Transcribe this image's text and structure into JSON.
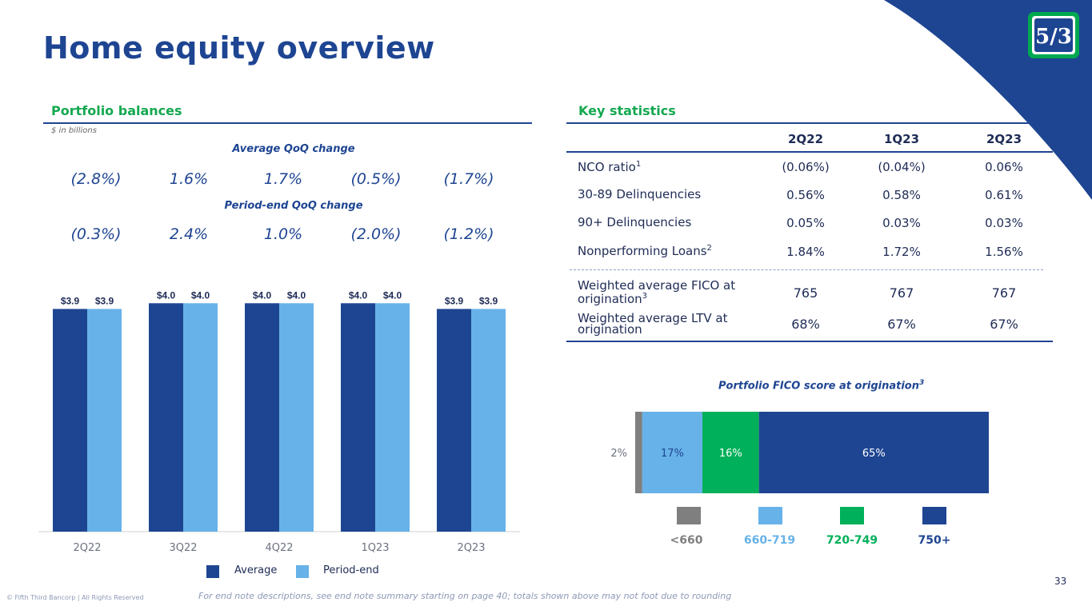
{
  "title": "Home equity overview",
  "colors": {
    "navy": "#1e4592",
    "light_blue": "#67b2e8",
    "green": "#00b05a",
    "gray": "#7f7f7f",
    "section_green": "#14a850"
  },
  "portfolio": {
    "heading": "Portfolio balances",
    "units": "$ in billions",
    "avg_qoq_title": "Average QoQ change",
    "avg_qoq": [
      "(2.8%)",
      "1.6%",
      "1.7%",
      "(0.5%)",
      "(1.7%)"
    ],
    "pe_qoq_title": "Period-end QoQ change",
    "pe_qoq": [
      "(0.3%)",
      "2.4%",
      "1.0%",
      "(2.0%)",
      "(1.2%)"
    ],
    "legend": {
      "average": "Average",
      "period_end": "Period-end"
    }
  },
  "chart_data": [
    {
      "type": "bar",
      "title": "Portfolio balances",
      "categories": [
        "2Q22",
        "3Q22",
        "4Q22",
        "1Q23",
        "2Q23"
      ],
      "series": [
        {
          "name": "Average",
          "values": [
            3.9,
            4.0,
            4.0,
            4.0,
            3.9
          ],
          "labels": [
            "$3.9",
            "$4.0",
            "$4.0",
            "$4.0",
            "$3.9"
          ]
        },
        {
          "name": "Period-end",
          "values": [
            3.9,
            4.0,
            4.0,
            4.0,
            3.9
          ],
          "labels": [
            "$3.9",
            "$4.0",
            "$4.0",
            "$4.0",
            "$3.9"
          ]
        }
      ],
      "ylabel": "$ in billions",
      "ylim": [
        0,
        4.2
      ]
    },
    {
      "type": "bar",
      "title": "Portfolio FICO score at origination3",
      "categories": [
        "<660",
        "660-719",
        "720-749",
        "750+"
      ],
      "values": [
        2,
        17,
        16,
        65
      ],
      "labels": [
        "2%",
        "17%",
        "16%",
        "65%"
      ],
      "stacked": true
    }
  ],
  "key_stats": {
    "heading": "Key statistics",
    "columns": [
      "2Q22",
      "1Q23",
      "2Q23"
    ],
    "rows": [
      {
        "label": "NCO ratio",
        "sup": "1",
        "values": [
          "(0.06%)",
          "(0.04%)",
          "0.06%"
        ]
      },
      {
        "label": "30-89 Delinquencies",
        "sup": "",
        "values": [
          "0.56%",
          "0.58%",
          "0.61%"
        ]
      },
      {
        "label": "90+ Delinquencies",
        "sup": "",
        "values": [
          "0.05%",
          "0.03%",
          "0.03%"
        ]
      },
      {
        "label": "Nonperforming Loans",
        "sup": "2",
        "values": [
          "1.84%",
          "1.72%",
          "1.56%"
        ]
      }
    ],
    "rows2": [
      {
        "line1": "Weighted average FICO at",
        "line2": "origination",
        "sup": "3",
        "values": [
          "765",
          "767",
          "767"
        ]
      },
      {
        "line1": "Weighted average LTV at",
        "line2": "origination",
        "sup": "",
        "values": [
          "68%",
          "67%",
          "67%"
        ]
      }
    ]
  },
  "fico": {
    "title": "Portfolio FICO score at origination",
    "title_sup": "3",
    "legend": [
      "<660",
      "660-719",
      "720-749",
      "750+"
    ]
  },
  "footer": {
    "note": "For end note descriptions, see end note summary starting on page 40; totals shown above may not foot due to rounding",
    "copyright": "© Fifth Third Bancorp | All Rights Reserved",
    "page_number": "33"
  },
  "logo_text": "5/3"
}
